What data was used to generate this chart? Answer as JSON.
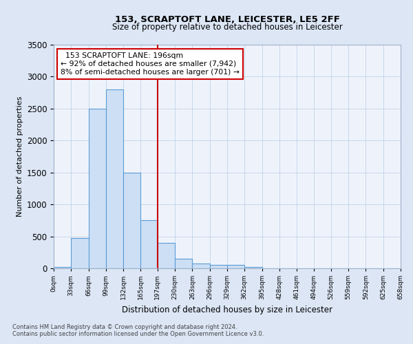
{
  "title1": "153, SCRAPTOFT LANE, LEICESTER, LE5 2FF",
  "title2": "Size of property relative to detached houses in Leicester",
  "xlabel": "Distribution of detached houses by size in Leicester",
  "ylabel": "Number of detached properties",
  "footnote1": "Contains HM Land Registry data © Crown copyright and database right 2024.",
  "footnote2": "Contains public sector information licensed under the Open Government Licence v3.0.",
  "annotation_line1": "153 SCRAPTOFT LANE: 196sqm",
  "annotation_line2": "← 92% of detached houses are smaller (7,942)",
  "annotation_line3": "8% of semi-detached houses are larger (701) →",
  "bar_edges": [
    0,
    33,
    66,
    99,
    132,
    165,
    197,
    230,
    263,
    296,
    329,
    362,
    395,
    428,
    461,
    494,
    526,
    559,
    592,
    625,
    658
  ],
  "bar_heights": [
    20,
    470,
    2500,
    2800,
    1500,
    750,
    400,
    155,
    75,
    50,
    55,
    20,
    0,
    0,
    0,
    0,
    0,
    0,
    0,
    0
  ],
  "bar_color": "#ccdff5",
  "bar_edgecolor": "#5b9bd5",
  "vline_x": 197,
  "vline_color": "#cc0000",
  "ylim": [
    0,
    3500
  ],
  "yticks": [
    0,
    500,
    1000,
    1500,
    2000,
    2500,
    3000,
    3500
  ],
  "xtick_labels": [
    "0sqm",
    "33sqm",
    "66sqm",
    "99sqm",
    "132sqm",
    "165sqm",
    "197sqm",
    "230sqm",
    "263sqm",
    "296sqm",
    "329sqm",
    "362sqm",
    "395sqm",
    "428sqm",
    "461sqm",
    "494sqm",
    "526sqm",
    "559sqm",
    "592sqm",
    "625sqm",
    "658sqm"
  ],
  "bg_color": "#dce6f5",
  "plot_bg_color": "#eef3fb"
}
